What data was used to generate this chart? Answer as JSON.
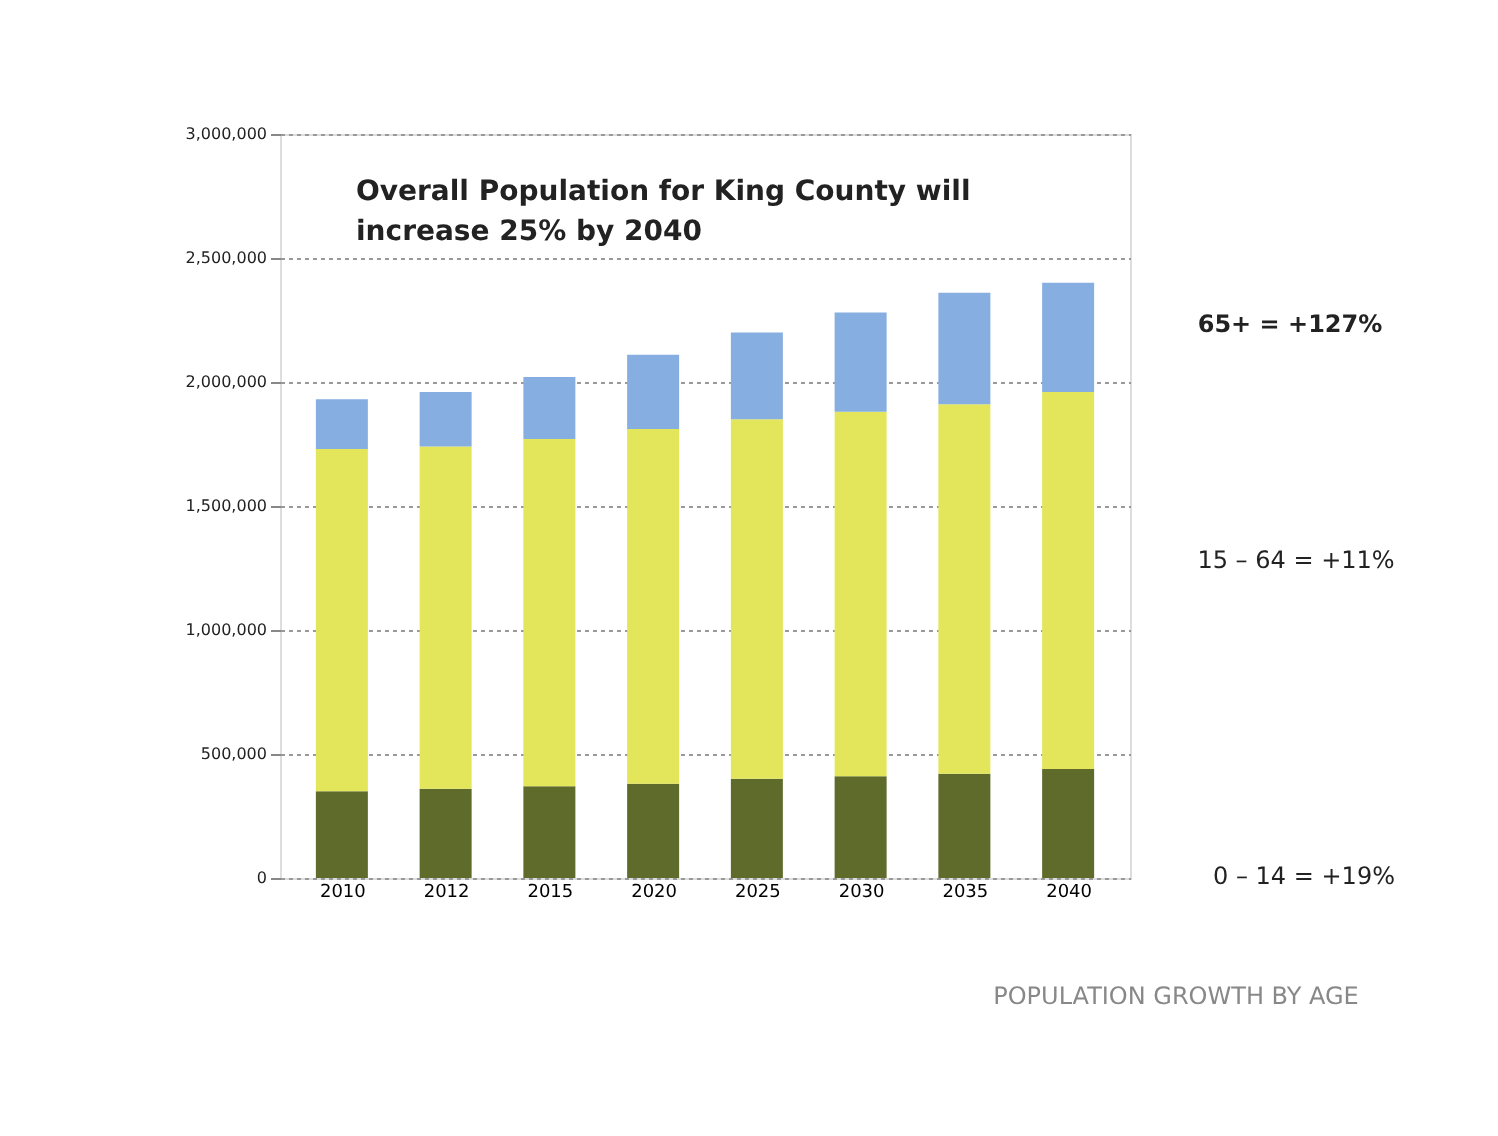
{
  "chart_data": {
    "type": "bar",
    "stacked": true,
    "title": "Overall Population for King County will increase 25% by 2040",
    "categories": [
      "2010",
      "2012",
      "2015",
      "2020",
      "2025",
      "2030",
      "2035",
      "2040"
    ],
    "series": [
      {
        "color": "#5f6b2a",
        "values": [
          350000,
          360000,
          370000,
          380000,
          400000,
          410000,
          420000,
          440000
        ]
      },
      {
        "color": "#e3e65a",
        "values": [
          1380000,
          1380000,
          1400000,
          1430000,
          1450000,
          1470000,
          1490000,
          1520000
        ]
      },
      {
        "color": "#86aee0",
        "values": [
          200000,
          220000,
          250000,
          300000,
          350000,
          400000,
          450000,
          440000
        ]
      }
    ],
    "ylim": [
      0,
      3000000
    ],
    "yticks": [
      0,
      {
        "value": 500000,
        "label": "500,000"
      },
      {
        "value": 1000000,
        "label": "1,000,000"
      },
      {
        "value": 1500000,
        "label": "1,500,000"
      },
      {
        "value": 2000000,
        "label": "2,000,000"
      },
      {
        "value": 2500000,
        "label": "2,500,000"
      },
      {
        "value": 3000000,
        "label": "3,000,000"
      }
    ],
    "grid": "y",
    "annotations": [
      "65+ = +127%",
      "15 – 64 = +11%",
      "0 – 14 = +19%",
      "POPULATION GROWTH BY AGE"
    ]
  }
}
